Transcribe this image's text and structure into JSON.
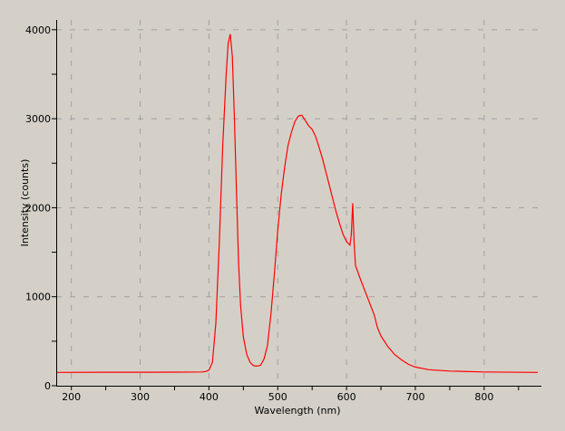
{
  "chart_data": {
    "type": "line",
    "title": "",
    "xlabel": "Wavelength (nm)",
    "ylabel": "Intensity (counts)",
    "xlim": [
      178,
      878
    ],
    "ylim": [
      0,
      4110
    ],
    "x_ticks": [
      200,
      300,
      400,
      500,
      600,
      700,
      800
    ],
    "y_ticks": [
      0,
      1000,
      2000,
      3000,
      4000
    ],
    "grid": true,
    "colors": {
      "background": "#d4d0c8",
      "series": "#ff0000",
      "grid": "#a0a0a0"
    },
    "series": [
      {
        "color": "#ff0000",
        "points": [
          [
            178,
            150
          ],
          [
            250,
            152
          ],
          [
            300,
            152
          ],
          [
            350,
            153
          ],
          [
            390,
            155
          ],
          [
            395,
            160
          ],
          [
            400,
            175
          ],
          [
            405,
            260
          ],
          [
            410,
            700
          ],
          [
            415,
            1600
          ],
          [
            420,
            2700
          ],
          [
            425,
            3500
          ],
          [
            428,
            3850
          ],
          [
            431,
            3950
          ],
          [
            434,
            3700
          ],
          [
            437,
            3000
          ],
          [
            440,
            2200
          ],
          [
            443,
            1400
          ],
          [
            446,
            900
          ],
          [
            450,
            550
          ],
          [
            455,
            350
          ],
          [
            460,
            260
          ],
          [
            465,
            225
          ],
          [
            470,
            220
          ],
          [
            475,
            230
          ],
          [
            480,
            300
          ],
          [
            485,
            450
          ],
          [
            490,
            800
          ],
          [
            495,
            1250
          ],
          [
            500,
            1750
          ],
          [
            505,
            2150
          ],
          [
            510,
            2450
          ],
          [
            515,
            2700
          ],
          [
            520,
            2850
          ],
          [
            525,
            2970
          ],
          [
            530,
            3030
          ],
          [
            535,
            3040
          ],
          [
            540,
            2980
          ],
          [
            545,
            2920
          ],
          [
            550,
            2880
          ],
          [
            555,
            2800
          ],
          [
            560,
            2680
          ],
          [
            565,
            2550
          ],
          [
            570,
            2400
          ],
          [
            575,
            2250
          ],
          [
            580,
            2100
          ],
          [
            585,
            1950
          ],
          [
            590,
            1820
          ],
          [
            595,
            1700
          ],
          [
            600,
            1620
          ],
          [
            605,
            1580
          ],
          [
            607,
            1700
          ],
          [
            609,
            2050
          ],
          [
            611,
            1600
          ],
          [
            613,
            1350
          ],
          [
            620,
            1200
          ],
          [
            630,
            1000
          ],
          [
            640,
            800
          ],
          [
            645,
            650
          ],
          [
            650,
            560
          ],
          [
            660,
            440
          ],
          [
            670,
            350
          ],
          [
            680,
            290
          ],
          [
            690,
            240
          ],
          [
            700,
            210
          ],
          [
            720,
            180
          ],
          [
            750,
            165
          ],
          [
            800,
            155
          ],
          [
            878,
            150
          ]
        ]
      }
    ]
  }
}
